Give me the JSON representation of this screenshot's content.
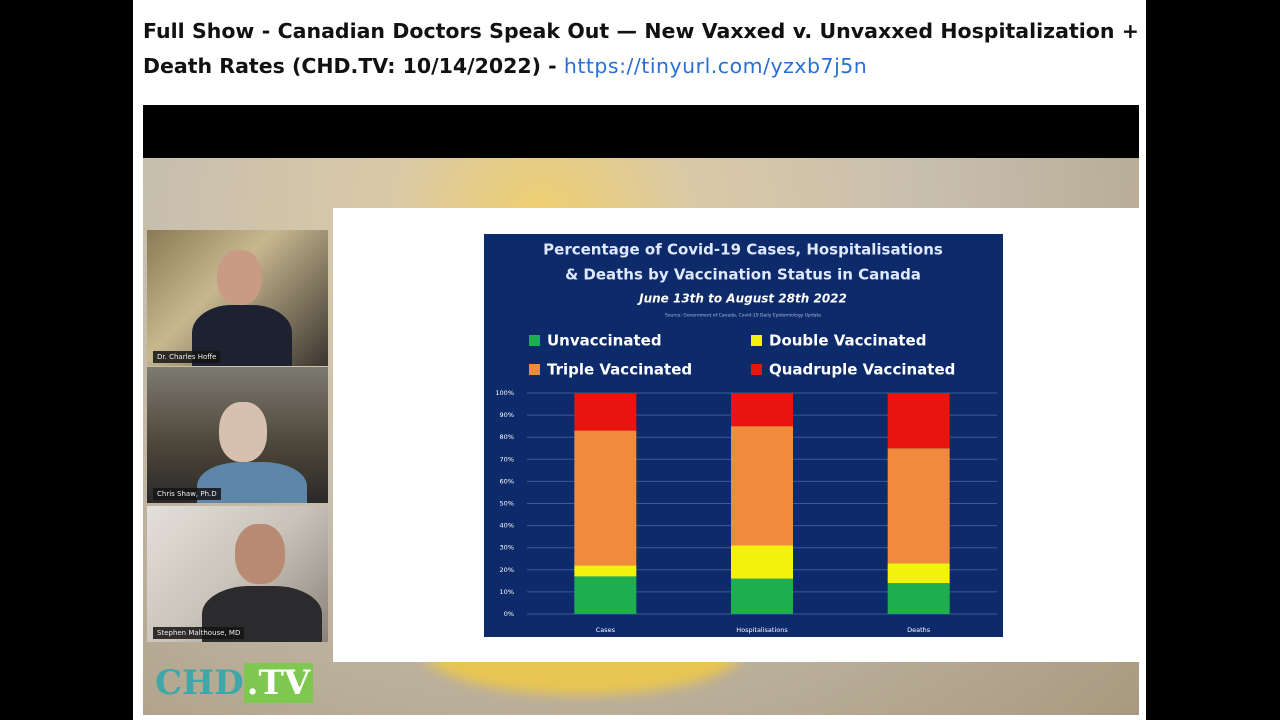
{
  "header": {
    "title": "Full Show - Canadian Doctors Speak Out — New Vaxxed v. Unvaxxed Hospitalization + Death Rates (CHD.TV: 10/14/2022) -",
    "link": "https://tinyurl.com/yzxb7j5n"
  },
  "video": {
    "participants": [
      "Dr. Charles Hoffe",
      "Chris Shaw, Ph.D",
      "Stephen Malthouse, MD"
    ],
    "logo": [
      "CHD",
      ".TV"
    ]
  },
  "chart_data": {
    "type": "stacked_bar",
    "title": [
      "Percentage of Covid-19 Cases, Hospitalisations",
      "& Deaths by Vaccination Status in Canada"
    ],
    "subtitle": "June 13th to August 28th 2022",
    "source": "Source: Government of Canada, Covid-19 Daily Epidemiology Update",
    "categories": [
      "Cases",
      "Hospitalisations",
      "Deaths"
    ],
    "series": [
      {
        "name": "Unvaccinated",
        "color": "#1fae4f",
        "values": [
          17,
          16,
          14
        ]
      },
      {
        "name": "Double Vaccinated",
        "color": "#f2f20c",
        "values": [
          5,
          15,
          9
        ]
      },
      {
        "name": "Triple Vaccinated",
        "color": "#f08a3c",
        "values": [
          61,
          54,
          52
        ]
      },
      {
        "name": "Quadruple Vaccinated",
        "color": "#e8140e",
        "values": [
          17,
          15,
          25
        ]
      }
    ],
    "ylim": [
      0,
      100
    ],
    "yticks": [
      {
        "value": 0,
        "label": "0%"
      },
      {
        "value": 10,
        "label": "10%"
      },
      {
        "value": 20,
        "label": "20%"
      },
      {
        "value": 30,
        "label": "30%"
      },
      {
        "value": 40,
        "label": "40%"
      },
      {
        "value": 50,
        "label": "50%"
      },
      {
        "value": 60,
        "label": "60%"
      },
      {
        "value": 70,
        "label": "70%"
      },
      {
        "value": 80,
        "label": "80%"
      },
      {
        "value": 90,
        "label": "90%"
      },
      {
        "value": 100,
        "label": "100%"
      }
    ],
    "grid": true
  }
}
